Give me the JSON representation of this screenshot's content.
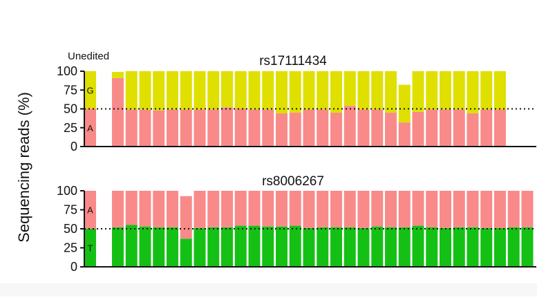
{
  "figure": {
    "ylabel": "Sequencing reads (%)",
    "control_label": "Unedited"
  },
  "colors": {
    "A": "#f98a8a",
    "G": "#dfe000",
    "T": "#15c015",
    "axis": "#111111",
    "background": "#ffffff"
  },
  "chart_data": [
    {
      "type": "bar",
      "stacked": true,
      "title": "rs17111434",
      "xlabel": "",
      "ylabel": "Sequencing reads (%)",
      "ylim": [
        0,
        100
      ],
      "yticks": [
        0,
        25,
        50,
        75,
        100
      ],
      "reference_line": 50,
      "grid": false,
      "control": {
        "label": "Unedited",
        "A": 50,
        "G": 50
      },
      "series": [
        {
          "name": "A",
          "values": [
            91,
            49,
            49,
            48,
            49,
            49,
            49,
            49,
            52,
            50,
            49,
            49,
            44,
            45,
            49,
            49,
            45,
            54,
            49,
            49,
            45,
            32,
            46,
            49,
            49,
            49,
            44,
            49,
            49
          ]
        },
        {
          "name": "G",
          "values": [
            8,
            51,
            51,
            52,
            51,
            51,
            51,
            51,
            48,
            50,
            51,
            51,
            56,
            55,
            51,
            51,
            55,
            46,
            51,
            51,
            55,
            50,
            54,
            51,
            51,
            51,
            56,
            51,
            51
          ]
        }
      ]
    },
    {
      "type": "bar",
      "stacked": true,
      "title": "rs8006267",
      "xlabel": "",
      "ylabel": "Sequencing reads (%)",
      "ylim": [
        0,
        100
      ],
      "yticks": [
        0,
        25,
        50,
        75,
        100
      ],
      "reference_line": 50,
      "grid": false,
      "control": {
        "label": "",
        "T": 50,
        "A": 50
      },
      "series": [
        {
          "name": "T",
          "values": [
            52,
            55,
            53,
            52,
            52,
            37,
            51,
            52,
            52,
            54,
            54,
            53,
            53,
            54,
            51,
            52,
            52,
            52,
            51,
            53,
            52,
            52,
            54,
            52,
            51,
            52,
            52,
            51,
            51,
            52,
            52
          ]
        },
        {
          "name": "A",
          "values": [
            48,
            45,
            47,
            48,
            48,
            56,
            49,
            48,
            48,
            46,
            46,
            47,
            47,
            46,
            49,
            48,
            48,
            48,
            49,
            47,
            48,
            48,
            46,
            48,
            49,
            48,
            48,
            49,
            49,
            48,
            48
          ]
        }
      ]
    }
  ]
}
